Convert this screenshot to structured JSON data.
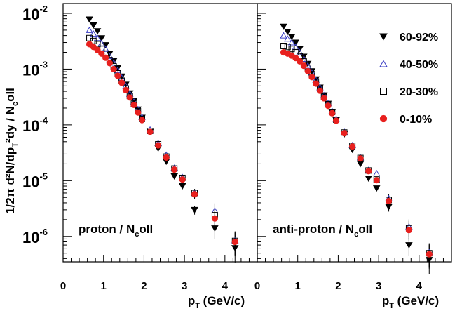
{
  "y_axis_label": "1/2π d²N/dp_T²dy / N_coll",
  "legend": [
    {
      "label": "60-92%",
      "marker": "triangle-down",
      "fill": "#000000",
      "stroke": "#000000"
    },
    {
      "label": "40-50%",
      "marker": "triangle-up",
      "fill": "none",
      "stroke": "#3b3fc4"
    },
    {
      "label": "20-30%",
      "marker": "square",
      "fill": "none",
      "stroke": "#000000"
    },
    {
      "label": "0-10%",
      "marker": "circle",
      "fill": "#e8201e",
      "stroke": "#e8201e"
    }
  ],
  "chart_data": [
    {
      "type": "scatter",
      "panel_label": "proton / N_coll",
      "xlabel": "p_T (GeV/c)",
      "ylabel": "1/2π d²N/dp_T²dy / N_coll",
      "xlim": [
        0,
        4.8
      ],
      "ylim": [
        3.5e-07,
        0.015
      ],
      "yscale": "log",
      "x_ticks": [
        0,
        1,
        2,
        3,
        4
      ],
      "y_ticks": [
        1e-06,
        1e-05,
        0.0001,
        0.001,
        0.01
      ],
      "y_tick_labels": [
        "10^-6",
        "10^-5",
        "10^-4",
        "10^-3",
        "10^-2"
      ],
      "series": [
        {
          "name": "60-92%",
          "x": [
            0.65,
            0.75,
            0.85,
            0.95,
            1.05,
            1.15,
            1.25,
            1.35,
            1.45,
            1.55,
            1.65,
            1.75,
            1.85,
            1.95,
            2.15,
            2.35,
            2.55,
            2.75,
            2.95,
            3.25,
            3.75,
            4.25
          ],
          "y": [
            0.0078,
            0.0061,
            0.0048,
            0.0036,
            0.0027,
            0.0019,
            0.0014,
            0.00105,
            0.00074,
            0.00053,
            0.00037,
            0.00027,
            0.00019,
            0.000135,
            7.5e-05,
            3.8e-05,
            2.2e-05,
            1.2e-05,
            8e-06,
            3e-06,
            1.4e-06,
            6.2e-07
          ]
        },
        {
          "name": "40-50%",
          "x": [
            0.65,
            0.75,
            0.85,
            0.95,
            1.05,
            1.15,
            1.25,
            1.35,
            1.45,
            1.55,
            1.65,
            1.75,
            1.85,
            1.95,
            2.15,
            2.35,
            2.55,
            2.75,
            2.95,
            3.25,
            3.75,
            4.25
          ],
          "y": [
            0.005,
            0.0043,
            0.0036,
            0.0029,
            0.0023,
            0.0017,
            0.0013,
            0.00096,
            0.0007,
            0.0005,
            0.00036,
            0.00026,
            0.00019,
            0.000138,
            8.2e-05,
            4.7e-05,
            2.9e-05,
            1.7e-05,
            1.15e-05,
            6e-06,
            2.9e-06,
            8.5e-07
          ]
        },
        {
          "name": "20-30%",
          "x": [
            0.65,
            0.75,
            0.85,
            0.95,
            1.05,
            1.15,
            1.25,
            1.35,
            1.45,
            1.55,
            1.65,
            1.75,
            1.85,
            1.95,
            2.15,
            2.35,
            2.55,
            2.75,
            2.95,
            3.25,
            3.75,
            4.25
          ],
          "y": [
            0.0036,
            0.0032,
            0.0028,
            0.0023,
            0.0019,
            0.00145,
            0.00112,
            0.00084,
            0.00062,
            0.00045,
            0.00033,
            0.00024,
            0.000175,
            0.000128,
            7.8e-05,
            4.5e-05,
            2.7e-05,
            1.65e-05,
            1.12e-05,
            6e-06,
            2.4e-06,
            8.3e-07
          ]
        },
        {
          "name": "0-10%",
          "x": [
            0.65,
            0.75,
            0.85,
            0.95,
            1.05,
            1.15,
            1.25,
            1.35,
            1.45,
            1.55,
            1.65,
            1.75,
            1.85,
            1.95,
            2.15,
            2.35,
            2.55,
            2.75,
            2.95,
            3.25,
            3.75,
            4.25
          ],
          "y": [
            0.0028,
            0.0025,
            0.0022,
            0.0019,
            0.0016,
            0.00128,
            0.001,
            0.00076,
            0.00057,
            0.00042,
            0.00031,
            0.000228,
            0.000167,
            0.000122,
            7.5e-05,
            4.3e-05,
            2.6e-05,
            1.58e-05,
            1.05e-05,
            5.7e-06,
            2.1e-06,
            8e-07
          ]
        }
      ]
    },
    {
      "type": "scatter",
      "panel_label": "anti-proton / N_coll",
      "xlabel": "p_T (GeV/c)",
      "ylabel": "",
      "xlim": [
        0,
        4.8
      ],
      "ylim": [
        3.5e-07,
        0.015
      ],
      "yscale": "log",
      "x_ticks": [
        0,
        1,
        2,
        3,
        4
      ],
      "series": [
        {
          "name": "60-92%",
          "x": [
            0.65,
            0.75,
            0.85,
            0.95,
            1.05,
            1.15,
            1.25,
            1.35,
            1.45,
            1.55,
            1.65,
            1.75,
            1.85,
            1.95,
            2.15,
            2.35,
            2.55,
            2.75,
            2.95,
            3.25,
            3.75,
            4.25
          ],
          "y": [
            0.0058,
            0.0047,
            0.0038,
            0.003,
            0.0023,
            0.00168,
            0.00125,
            0.00092,
            0.00066,
            0.00047,
            0.00034,
            0.00024,
            0.000172,
            0.000122,
            6.8e-05,
            3.6e-05,
            2e-05,
            1.1e-05,
            7.3e-06,
            3.4e-06,
            7e-07,
            3.8e-07
          ]
        },
        {
          "name": "40-50%",
          "x": [
            0.65,
            0.75,
            0.85,
            0.95,
            1.05,
            1.15,
            1.25,
            1.35,
            1.45,
            1.55,
            1.65,
            1.75,
            1.85,
            1.95,
            2.15,
            2.35,
            2.55,
            2.75,
            2.95,
            3.25,
            3.75,
            4.25
          ],
          "y": [
            0.004,
            0.0035,
            0.003,
            0.0025,
            0.002,
            0.00152,
            0.00115,
            0.00087,
            0.00064,
            0.00047,
            0.00034,
            0.000245,
            0.000177,
            0.000128,
            7.5e-05,
            4.3e-05,
            2.6e-05,
            1.55e-05,
            1.35e-05,
            4.8e-06,
            1.5e-06,
            5.2e-07
          ]
        },
        {
          "name": "20-30%",
          "x": [
            0.65,
            0.75,
            0.85,
            0.95,
            1.05,
            1.15,
            1.25,
            1.35,
            1.45,
            1.55,
            1.65,
            1.75,
            1.85,
            1.95,
            2.15,
            2.35,
            2.55,
            2.75,
            2.95,
            3.25,
            3.75,
            4.25
          ],
          "y": [
            0.0026,
            0.0025,
            0.0023,
            0.002,
            0.0017,
            0.00137,
            0.00106,
            0.00081,
            0.0006,
            0.00044,
            0.00032,
            0.000235,
            0.00017,
            0.000124,
            7.3e-05,
            4.2e-05,
            2.55e-05,
            1.52e-05,
            1.05e-05,
            4.5e-06,
            1.4e-06,
            5e-07
          ]
        },
        {
          "name": "0-10%",
          "x": [
            0.65,
            0.75,
            0.85,
            0.95,
            1.05,
            1.15,
            1.25,
            1.35,
            1.45,
            1.55,
            1.65,
            1.75,
            1.85,
            1.95,
            2.15,
            2.35,
            2.55,
            2.75,
            2.95,
            3.25,
            3.75,
            4.25
          ],
          "y": [
            0.002,
            0.0019,
            0.00175,
            0.00158,
            0.00138,
            0.00115,
            0.00092,
            0.00072,
            0.00055,
            0.00041,
            0.0003,
            0.00022,
            0.000162,
            0.000119,
            7.1e-05,
            4.1e-05,
            2.5e-05,
            1.48e-05,
            1.02e-05,
            4.3e-06,
            1.3e-06,
            4.8e-07
          ]
        }
      ]
    }
  ]
}
